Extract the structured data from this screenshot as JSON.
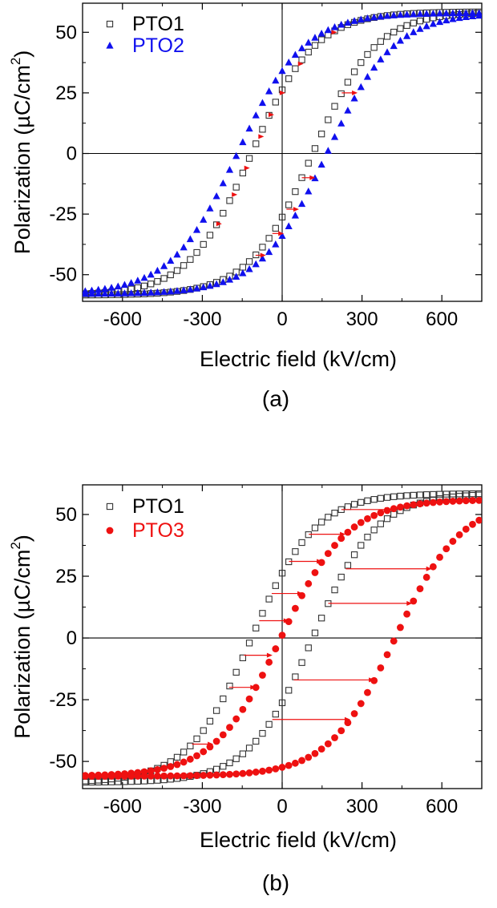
{
  "colors": {
    "pto1": "#333333",
    "pto2": "#1010ee",
    "pto3": "#ee1111",
    "arrow": "#ee1111",
    "axis": "#000000"
  },
  "chart_data": [
    {
      "type": "scatter",
      "panel_label": "(a)",
      "xlabel": "Electric field (kV/cm)",
      "ylabel": "Polarization (µC/cm²)",
      "ylabel_prefix": "Polarization (",
      "ylabel_mu": "µ",
      "ylabel_unit": "C/cm",
      "ylabel_sup": "2",
      "ylabel_suffix": ")",
      "xlim": [
        -750,
        750
      ],
      "ylim": [
        -61,
        62
      ],
      "xticks": [
        -600,
        -300,
        0,
        300,
        600
      ],
      "xtick_labels": [
        "-600",
        "-300",
        "0",
        "300",
        "600"
      ],
      "yticks": [
        -50,
        -25,
        0,
        25,
        50
      ],
      "ytick_labels": [
        "-50",
        "-25",
        "0",
        "25",
        "50"
      ],
      "legend_position": "top-left",
      "series": [
        {
          "name": "PTO1",
          "marker": "open-square",
          "color_key": "pto1",
          "Ps": 58.5,
          "Ec": 115,
          "k": 0.0042,
          "x_range": [
            -740,
            740
          ]
        },
        {
          "name": "PTO2",
          "marker": "filled-triangle",
          "color_key": "pto2",
          "Ps": 58.0,
          "Ec": 168,
          "k": 0.004,
          "x_range": [
            -740,
            740
          ]
        }
      ],
      "arrows": [
        {
          "branch": "upper",
          "y": 50
        },
        {
          "branch": "upper",
          "y": 37
        },
        {
          "branch": "upper",
          "y": 25
        },
        {
          "branch": "upper",
          "y": 16
        },
        {
          "branch": "upper",
          "y": 7
        },
        {
          "branch": "upper",
          "y": -6
        },
        {
          "branch": "upper",
          "y": -17
        },
        {
          "branch": "upper",
          "y": -29
        },
        {
          "branch": "lower",
          "y": -42
        },
        {
          "branch": "lower",
          "y": -33
        },
        {
          "branch": "lower",
          "y": -23
        },
        {
          "branch": "lower",
          "y": -10
        },
        {
          "branch": "lower",
          "y": 25
        }
      ]
    },
    {
      "type": "scatter",
      "panel_label": "(b)",
      "xlabel": "Electric field (kV/cm)",
      "ylabel": "Polarization (µC/cm²)",
      "ylabel_prefix": "Polarization (",
      "ylabel_mu": "µ",
      "ylabel_unit": "C/cm",
      "ylabel_sup": "2",
      "ylabel_suffix": ")",
      "xlim": [
        -750,
        750
      ],
      "ylim": [
        -61,
        62
      ],
      "xticks": [
        -600,
        -300,
        0,
        300,
        600
      ],
      "xtick_labels": [
        "-600",
        "-300",
        "0",
        "300",
        "600"
      ],
      "yticks": [
        -50,
        -25,
        0,
        25,
        50
      ],
      "ytick_labels": [
        "-50",
        "-25",
        "0",
        "25",
        "50"
      ],
      "legend_position": "top-left",
      "series": [
        {
          "name": "PTO1",
          "marker": "open-square",
          "color_key": "pto1",
          "Ps": 58.5,
          "Ec": 115,
          "k": 0.0042,
          "x_range": [
            -740,
            740
          ]
        },
        {
          "name": "PTO3",
          "marker": "filled-circle",
          "color_key": "pto3",
          "Ps": 56.0,
          "Ec": 215,
          "k": 0.004,
          "offset": 210,
          "x_range": [
            -740,
            740
          ]
        }
      ],
      "arrows": [
        {
          "branch": "upper",
          "y": 52
        },
        {
          "branch": "upper",
          "y": 42
        },
        {
          "branch": "upper",
          "y": 31
        },
        {
          "branch": "upper",
          "y": 18
        },
        {
          "branch": "upper",
          "y": 7
        },
        {
          "branch": "upper",
          "y": -7
        },
        {
          "branch": "upper",
          "y": -20
        },
        {
          "branch": "upper",
          "y": -43
        },
        {
          "branch": "lower",
          "y": -33
        },
        {
          "branch": "lower",
          "y": -17
        },
        {
          "branch": "lower",
          "y": 14
        },
        {
          "branch": "lower",
          "y": 28
        }
      ]
    }
  ]
}
